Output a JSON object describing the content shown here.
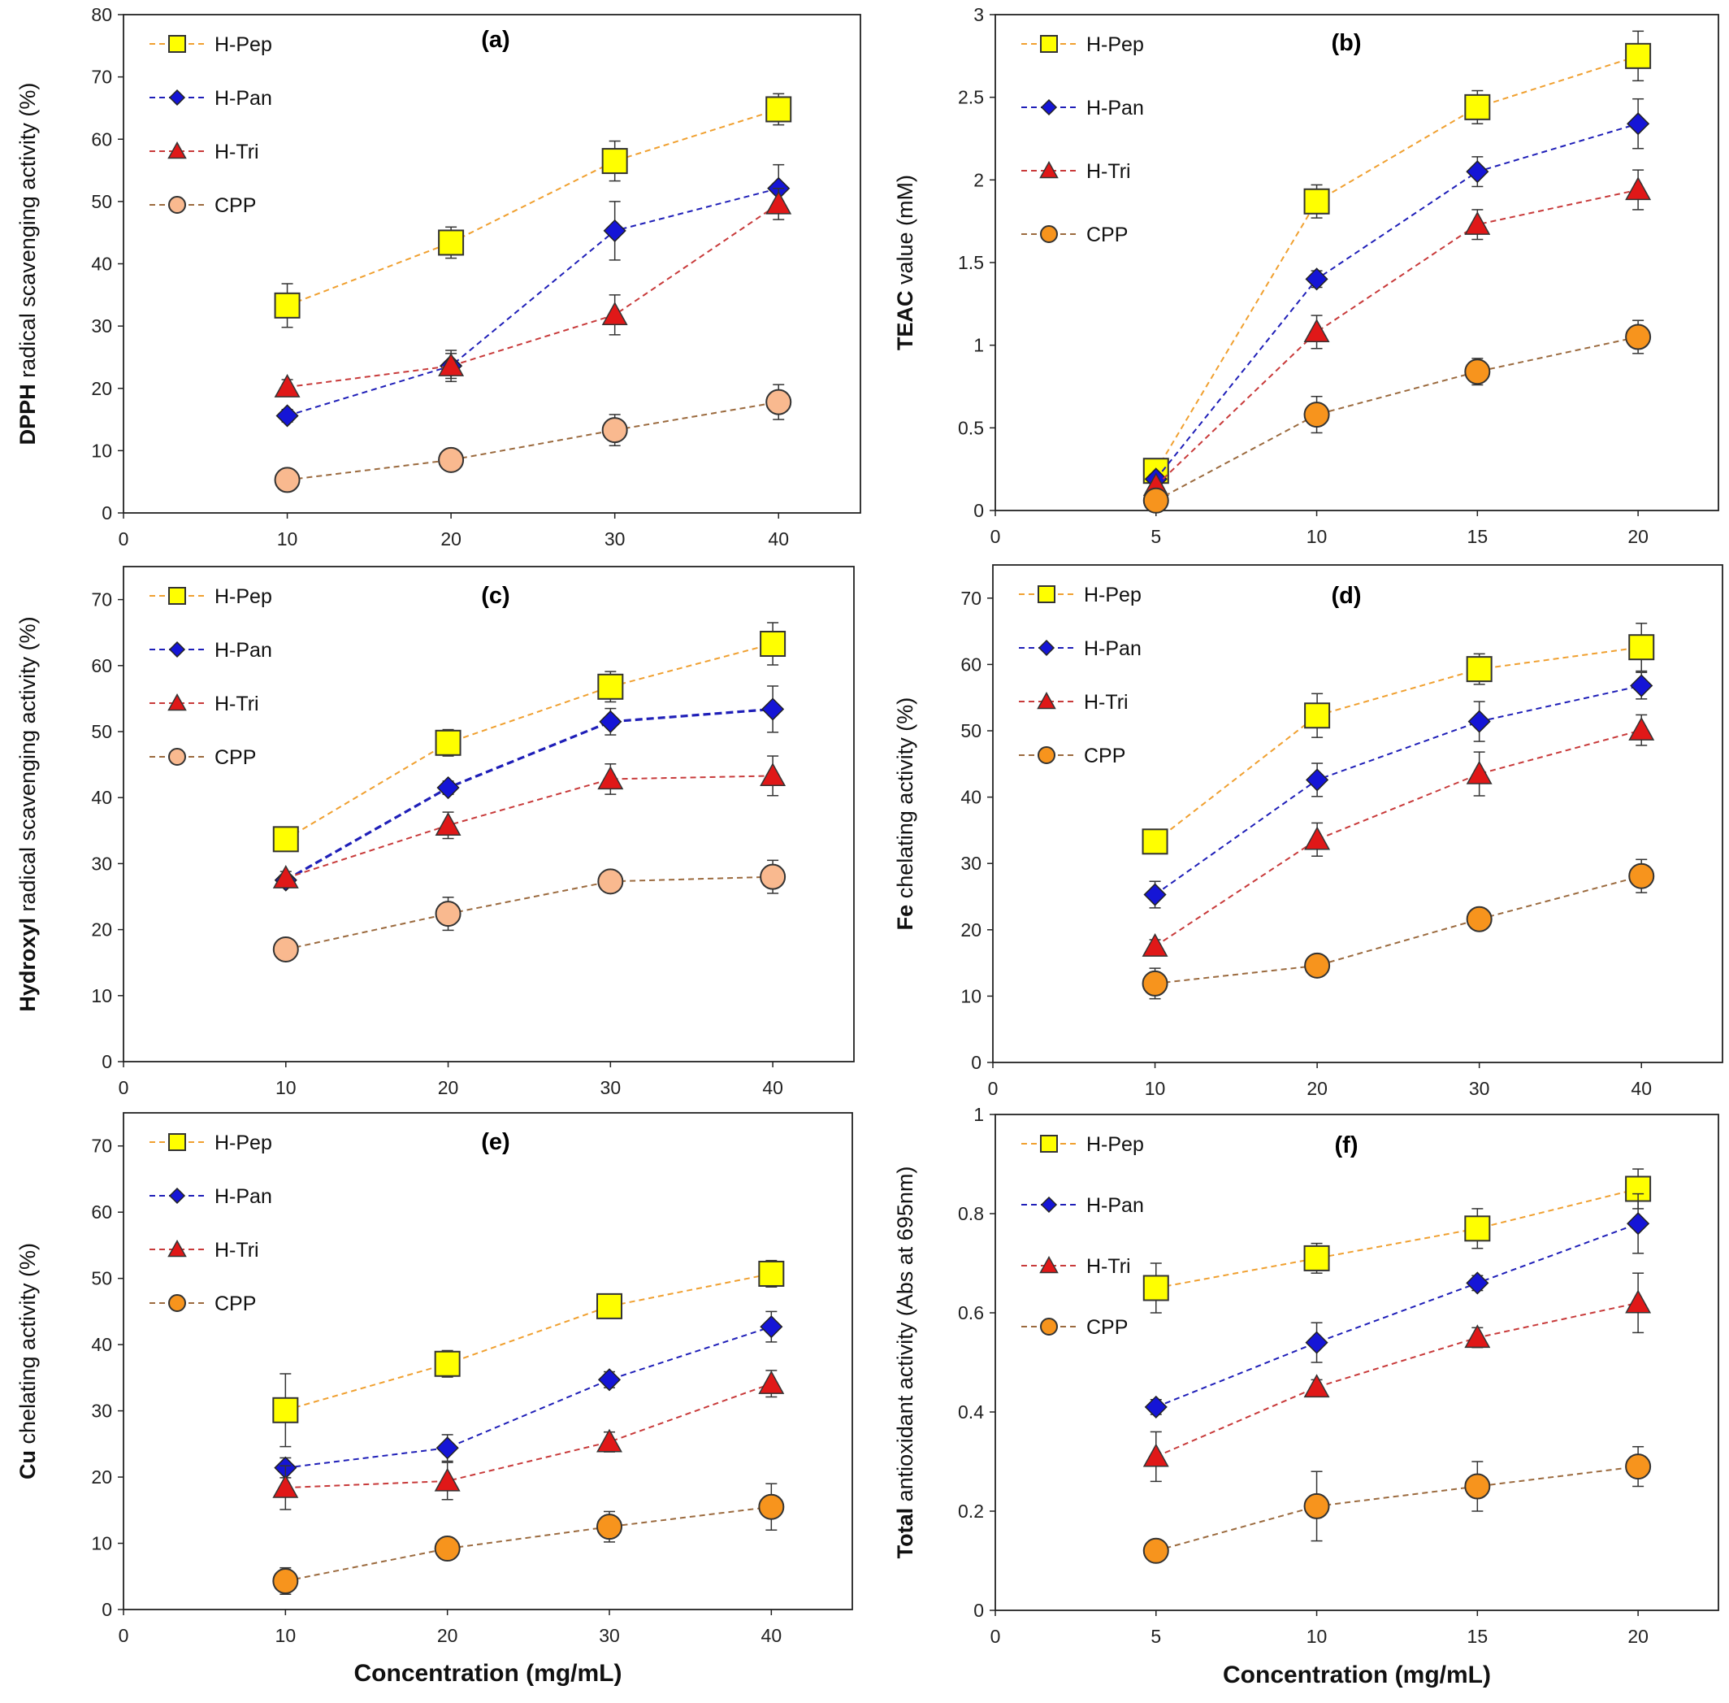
{
  "colors": {
    "H-Pep": {
      "fill": "#ffff00",
      "line": "#f0a030"
    },
    "H-Pan": {
      "fill": "#1515d6",
      "line": "#1f1fb8"
    },
    "H-Tri": {
      "fill": "#e01818",
      "line": "#c83a3a"
    },
    "CPP-light": {
      "fill": "#f9b98f",
      "line": "#9b6a3e"
    },
    "CPP-orange": {
      "fill": "#f7941d",
      "line": "#9b6a3e"
    }
  },
  "chart_data": [
    {
      "type": "line",
      "panel_label": "(a)",
      "ylabel_bold": "DPPH",
      "ylabel_rest": " radical scavenging activity (%)",
      "xlabel": "",
      "xlim": [
        0,
        45
      ],
      "ylim": [
        0,
        80
      ],
      "xticks": [
        "0",
        "10",
        "20",
        "30",
        "40"
      ],
      "yticks": [
        "0",
        "10",
        "20",
        "30",
        "40",
        "50",
        "60",
        "70",
        "80"
      ],
      "legend_position": "top-left",
      "cpp_style": "light",
      "x": [
        10,
        20,
        30,
        40
      ],
      "series": [
        {
          "name": "H-Pep",
          "marker": "square",
          "values": [
            33.3,
            43.4,
            56.5,
            64.8
          ],
          "errors": [
            3.5,
            2.5,
            3.2,
            2.5
          ]
        },
        {
          "name": "H-Pan",
          "marker": "diamond",
          "values": [
            15.6,
            23.6,
            45.3,
            52.1
          ],
          "errors": [
            1.0,
            2.5,
            4.7,
            3.8
          ]
        },
        {
          "name": "H-Tri",
          "marker": "triangle",
          "values": [
            20.2,
            23.6,
            31.8,
            49.6
          ],
          "errors": [
            1.2,
            2.0,
            3.2,
            2.5
          ]
        },
        {
          "name": "CPP",
          "marker": "circle",
          "values": [
            5.3,
            8.5,
            13.3,
            17.8
          ],
          "errors": [
            1.0,
            1.5,
            2.5,
            2.8
          ]
        }
      ]
    },
    {
      "type": "line",
      "panel_label": "(b)",
      "ylabel_bold": "TEAC",
      "ylabel_rest": " value (mM)",
      "xlabel": "",
      "xlim": [
        0,
        22.5
      ],
      "ylim": [
        0,
        3
      ],
      "xticks": [
        "0",
        "5",
        "10",
        "15",
        "20"
      ],
      "yticks": [
        "0",
        "0.5",
        "1",
        "1.5",
        "2",
        "2.5",
        "3"
      ],
      "legend_position": "top-left",
      "cpp_style": "orange",
      "x": [
        5,
        10,
        15,
        20
      ],
      "series": [
        {
          "name": "H-Pep",
          "marker": "square",
          "values": [
            0.24,
            1.87,
            2.44,
            2.75
          ],
          "errors": [
            0.03,
            0.1,
            0.1,
            0.15
          ]
        },
        {
          "name": "H-Pan",
          "marker": "diamond",
          "values": [
            0.19,
            1.4,
            2.05,
            2.34
          ],
          "errors": [
            0.02,
            0.05,
            0.09,
            0.15
          ]
        },
        {
          "name": "H-Tri",
          "marker": "triangle",
          "values": [
            0.15,
            1.08,
            1.73,
            1.94
          ],
          "errors": [
            0.02,
            0.1,
            0.09,
            0.12
          ]
        },
        {
          "name": "CPP",
          "marker": "circle",
          "values": [
            0.06,
            0.58,
            0.84,
            1.05
          ],
          "errors": [
            0.01,
            0.11,
            0.08,
            0.1
          ]
        }
      ]
    },
    {
      "type": "line",
      "panel_label": "(c)",
      "ylabel_bold": "Hydroxyl",
      "ylabel_rest": " radical scavenging activity (%)",
      "xlabel": "",
      "xlim": [
        0,
        45
      ],
      "ylim": [
        0,
        75
      ],
      "xticks": [
        "0",
        "10",
        "20",
        "30",
        "40"
      ],
      "yticks": [
        "0",
        "10",
        "20",
        "30",
        "40",
        "50",
        "60",
        "70"
      ],
      "legend_position": "top-left",
      "cpp_style": "light",
      "x": [
        10,
        20,
        30,
        40
      ],
      "series": [
        {
          "name": "H-Pep",
          "marker": "square",
          "values": [
            33.7,
            48.3,
            56.8,
            63.3
          ],
          "errors": [
            1.0,
            2.0,
            2.3,
            3.2
          ]
        },
        {
          "name": "H-Pan",
          "marker": "diamond",
          "values": [
            27.5,
            41.5,
            51.5,
            53.4
          ],
          "errors": [
            0.8,
            1.0,
            2.0,
            3.5
          ],
          "thick": true
        },
        {
          "name": "H-Tri",
          "marker": "triangle",
          "values": [
            27.8,
            35.8,
            42.8,
            43.3
          ],
          "errors": [
            1.0,
            2.0,
            2.3,
            3.0
          ]
        },
        {
          "name": "CPP",
          "marker": "circle",
          "values": [
            17.0,
            22.4,
            27.3,
            28.0
          ],
          "errors": [
            0.5,
            2.5,
            1.5,
            2.5
          ]
        }
      ]
    },
    {
      "type": "line",
      "panel_label": "(d)",
      "ylabel_bold": "Fe",
      "ylabel_rest": " chelating activity (%)",
      "xlabel": "",
      "xlim": [
        0,
        45
      ],
      "ylim": [
        0,
        75
      ],
      "xticks": [
        "0",
        "10",
        "20",
        "30",
        "40"
      ],
      "yticks": [
        "0",
        "10",
        "20",
        "30",
        "40",
        "50",
        "60",
        "70"
      ],
      "legend_position": "top-left",
      "cpp_style": "orange",
      "x": [
        10,
        20,
        30,
        40
      ],
      "series": [
        {
          "name": "H-Pep",
          "marker": "square",
          "values": [
            33.3,
            52.3,
            59.3,
            62.6
          ],
          "errors": [
            1.0,
            3.3,
            2.3,
            3.6
          ]
        },
        {
          "name": "H-Pan",
          "marker": "diamond",
          "values": [
            25.3,
            42.6,
            51.4,
            56.8
          ],
          "errors": [
            2.0,
            2.5,
            3.0,
            2.0
          ]
        },
        {
          "name": "H-Tri",
          "marker": "triangle",
          "values": [
            17.5,
            33.6,
            43.5,
            50.1
          ],
          "errors": [
            1.0,
            2.5,
            3.3,
            2.3
          ]
        },
        {
          "name": "CPP",
          "marker": "circle",
          "values": [
            11.9,
            14.6,
            21.6,
            28.1
          ],
          "errors": [
            2.3,
            1.0,
            1.5,
            2.5
          ]
        }
      ]
    },
    {
      "type": "line",
      "panel_label": "(e)",
      "ylabel_bold": "Cu",
      "ylabel_rest": " chelating activity (%)",
      "xlabel": "Concentration (mg/mL)",
      "xlim": [
        0,
        45
      ],
      "ylim": [
        0,
        75
      ],
      "xticks": [
        "0",
        "10",
        "20",
        "30",
        "40"
      ],
      "yticks": [
        "0",
        "10",
        "20",
        "30",
        "40",
        "50",
        "60",
        "70"
      ],
      "legend_position": "top-left",
      "cpp_style": "orange",
      "x": [
        10,
        20,
        30,
        40
      ],
      "series": [
        {
          "name": "H-Pep",
          "marker": "square",
          "values": [
            30.1,
            37.1,
            45.8,
            50.7
          ],
          "errors": [
            5.5,
            2.0,
            1.5,
            2.0
          ]
        },
        {
          "name": "H-Pan",
          "marker": "diamond",
          "values": [
            21.4,
            24.4,
            34.7,
            42.7
          ],
          "errors": [
            1.5,
            2.0,
            1.2,
            2.3
          ]
        },
        {
          "name": "H-Tri",
          "marker": "triangle",
          "values": [
            18.4,
            19.4,
            25.3,
            34.1
          ],
          "errors": [
            3.3,
            2.8,
            1.5,
            2.0
          ]
        },
        {
          "name": "CPP",
          "marker": "circle",
          "values": [
            4.3,
            9.2,
            12.5,
            15.5
          ],
          "errors": [
            2.0,
            1.5,
            2.3,
            3.5
          ]
        }
      ]
    },
    {
      "type": "line",
      "panel_label": "(f)",
      "ylabel_bold": "Total",
      "ylabel_rest": " antioxidant activity (Abs at 695nm)",
      "xlabel": "Concentration (mg/mL)",
      "xlim": [
        0,
        22.5
      ],
      "ylim": [
        0,
        1
      ],
      "xticks": [
        "0",
        "5",
        "10",
        "15",
        "20"
      ],
      "yticks": [
        "0",
        "0.2",
        "0.4",
        "0.6",
        "0.8",
        "1"
      ],
      "legend_position": "top-left",
      "cpp_style": "orange",
      "x": [
        5,
        10,
        15,
        20
      ],
      "series": [
        {
          "name": "H-Pep",
          "marker": "square",
          "values": [
            0.65,
            0.71,
            0.77,
            0.85
          ],
          "errors": [
            0.05,
            0.03,
            0.04,
            0.04
          ]
        },
        {
          "name": "H-Pan",
          "marker": "diamond",
          "values": [
            0.41,
            0.54,
            0.66,
            0.78
          ],
          "errors": [
            0.015,
            0.04,
            0.015,
            0.06
          ]
        },
        {
          "name": "H-Tri",
          "marker": "triangle",
          "values": [
            0.31,
            0.45,
            0.55,
            0.62
          ],
          "errors": [
            0.05,
            0.015,
            0.02,
            0.06
          ]
        },
        {
          "name": "CPP",
          "marker": "circle",
          "values": [
            0.12,
            0.21,
            0.25,
            0.29
          ],
          "errors": [
            0.01,
            0.07,
            0.05,
            0.04
          ]
        }
      ]
    }
  ]
}
